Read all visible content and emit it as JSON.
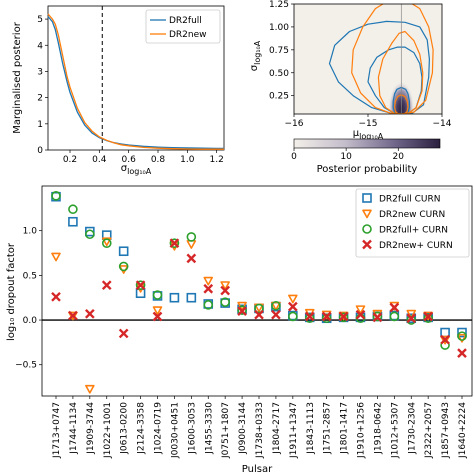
{
  "chart_data": [
    {
      "type": "line",
      "xlabel_base": "σ",
      "xlabel_sub": "log₁₀A",
      "ylabel": "Marginalised posterior",
      "xlim": [
        0.05,
        1.25
      ],
      "ylim": [
        0,
        5.5
      ],
      "xticks": [
        "0.2",
        "0.4",
        "0.6",
        "0.8",
        "1.0",
        "1.2"
      ],
      "yticks": [
        "0",
        "1",
        "2",
        "3",
        "4",
        "5"
      ],
      "vline_x": 0.42,
      "legend_position": "top-right",
      "series": [
        {
          "name": "DR2full",
          "color": "#1f77b4",
          "x": [
            0.05,
            0.08,
            0.1,
            0.12,
            0.15,
            0.18,
            0.2,
            0.25,
            0.3,
            0.35,
            0.4,
            0.45,
            0.5,
            0.55,
            0.6,
            0.7,
            0.8,
            0.9,
            1.0,
            1.1,
            1.2,
            1.25
          ],
          "y": [
            5.1,
            4.9,
            4.6,
            4.1,
            3.3,
            2.6,
            2.2,
            1.45,
            0.95,
            0.65,
            0.47,
            0.36,
            0.28,
            0.23,
            0.19,
            0.14,
            0.11,
            0.09,
            0.08,
            0.07,
            0.06,
            0.06
          ]
        },
        {
          "name": "DR2new",
          "color": "#ff7f0e",
          "x": [
            0.05,
            0.08,
            0.1,
            0.12,
            0.15,
            0.18,
            0.2,
            0.25,
            0.3,
            0.35,
            0.4,
            0.45,
            0.5,
            0.55,
            0.6,
            0.7,
            0.8,
            0.9,
            1.0,
            1.1,
            1.2,
            1.25
          ],
          "y": [
            5.2,
            5.0,
            4.8,
            4.4,
            3.6,
            2.8,
            2.4,
            1.6,
            1.05,
            0.72,
            0.5,
            0.37,
            0.27,
            0.2,
            0.16,
            0.1,
            0.07,
            0.05,
            0.04,
            0.03,
            0.03,
            0.03
          ]
        }
      ]
    },
    {
      "type": "heatmap",
      "xlabel_base": "μ",
      "xlabel_sub": "log₁₀A",
      "ylabel_base": "σ",
      "ylabel_sub": "log₁₀A",
      "xlim": [
        -16,
        -14
      ],
      "ylim": [
        0.05,
        1.25
      ],
      "xticks": [
        "−16",
        "−15",
        "−14"
      ],
      "yticks": [
        "0.25",
        "0.50",
        "0.75",
        "1.00",
        "1.25"
      ],
      "vline_x": -14.55,
      "colorbar_label": "Posterior probability",
      "colorbar_ticks": [
        "0",
        "10",
        "20"
      ],
      "colorbar_range": [
        0,
        28
      ],
      "peak": {
        "mu": -14.55,
        "sigma": 0.1,
        "value": 28
      },
      "contours": [
        {
          "series": "DR2full",
          "color": "#1f77b4",
          "mu": [
            -14.55,
            -14.49,
            -14.46,
            -14.44,
            -14.44,
            -14.46,
            -14.49,
            -14.55,
            -14.61,
            -14.64,
            -14.66,
            -14.66,
            -14.64,
            -14.61
          ],
          "sigma": [
            0.34,
            0.32,
            0.27,
            0.19,
            0.12,
            0.07,
            0.05,
            0.045,
            0.05,
            0.07,
            0.12,
            0.19,
            0.27,
            0.32
          ]
        },
        {
          "series": "DR2full",
          "color": "#1f77b4",
          "mu": [
            -14.5,
            -14.38,
            -14.3,
            -14.27,
            -14.28,
            -14.35,
            -14.45,
            -14.55,
            -14.65,
            -14.78,
            -14.9,
            -15.0,
            -14.97,
            -14.88,
            -14.72,
            -14.6
          ],
          "sigma": [
            0.78,
            0.72,
            0.6,
            0.45,
            0.3,
            0.12,
            0.06,
            0.05,
            0.06,
            0.12,
            0.25,
            0.4,
            0.55,
            0.67,
            0.75,
            0.78
          ]
        },
        {
          "series": "DR2full",
          "color": "#1f77b4",
          "mu": [
            -14.5,
            -14.3,
            -14.2,
            -14.17,
            -14.18,
            -14.25,
            -14.4,
            -14.55,
            -14.7,
            -14.95,
            -15.2,
            -15.4,
            -15.52,
            -15.45,
            -15.25,
            -15.0,
            -14.75
          ],
          "sigma": [
            1.05,
            1.0,
            0.86,
            0.65,
            0.45,
            0.15,
            0.06,
            0.05,
            0.06,
            0.12,
            0.25,
            0.4,
            0.6,
            0.8,
            0.95,
            1.03,
            1.06
          ]
        },
        {
          "series": "DR2new",
          "color": "#ff7f0e",
          "mu": [
            -14.55,
            -14.5,
            -14.47,
            -14.46,
            -14.47,
            -14.5,
            -14.55,
            -14.6,
            -14.63,
            -14.64,
            -14.63,
            -14.6
          ],
          "sigma": [
            0.26,
            0.24,
            0.19,
            0.13,
            0.08,
            0.055,
            0.05,
            0.055,
            0.08,
            0.13,
            0.19,
            0.24
          ]
        },
        {
          "series": "DR2new",
          "color": "#ff7f0e",
          "mu": [
            -14.5,
            -14.38,
            -14.3,
            -14.26,
            -14.27,
            -14.35,
            -14.45,
            -14.55,
            -14.65,
            -14.76,
            -14.84,
            -14.86,
            -14.8,
            -14.68,
            -14.58
          ],
          "sigma": [
            0.95,
            0.85,
            0.7,
            0.5,
            0.3,
            0.12,
            0.06,
            0.05,
            0.06,
            0.12,
            0.25,
            0.45,
            0.65,
            0.82,
            0.93
          ]
        },
        {
          "series": "DR2new",
          "color": "#ff7f0e",
          "mu": [
            -14.5,
            -14.3,
            -14.18,
            -14.12,
            -14.13,
            -14.22,
            -14.38,
            -14.55,
            -14.7,
            -14.9,
            -15.1,
            -15.22,
            -15.2,
            -15.07,
            -14.9,
            -14.7
          ],
          "sigma": [
            1.3,
            1.2,
            1.0,
            0.75,
            0.5,
            0.2,
            0.07,
            0.05,
            0.06,
            0.12,
            0.28,
            0.5,
            0.75,
            1.0,
            1.2,
            1.3
          ]
        }
      ]
    },
    {
      "type": "scatter",
      "ylabel": "log₁₀ dropout factor",
      "xlabel": "Pulsar",
      "ylim": [
        -0.85,
        1.5
      ],
      "yticks": [
        "−0.5",
        "0.0",
        "0.5",
        "1.0"
      ],
      "ytick_values": [
        -0.5,
        0,
        0.5,
        1.0
      ],
      "hline_y": 0,
      "legend_position": "top-right",
      "categories": [
        "J1713+0747",
        "J1744-1134",
        "J1909-3744",
        "J1022+1001",
        "J0613-0200",
        "J2124-3358",
        "J1024-0719",
        "J0030+0451",
        "J1600-3053",
        "J1455-3330",
        "J0751+1807",
        "J0900-3144",
        "J1738+0333",
        "J1804-2717",
        "J1911+1347",
        "J1843-1113",
        "J1751-2857",
        "J1801-1417",
        "J1910+1256",
        "J1918-0642",
        "J1012+5307",
        "J1730-2304",
        "J2322+2057",
        "J1857+0943",
        "J1640+2224"
      ],
      "series": [
        {
          "name": "DR2full CURN",
          "marker": "square",
          "color": "#1f77b4",
          "values": [
            1.38,
            1.1,
            0.99,
            0.95,
            0.77,
            0.3,
            0.27,
            0.25,
            0.25,
            0.18,
            0.19,
            0.12,
            0.13,
            0.15,
            0.05,
            0.03,
            0.02,
            0.03,
            0.03,
            0.04,
            0.05,
            0.02,
            0.03,
            -0.14,
            -0.14
          ]
        },
        {
          "name": "DR2new CURN",
          "marker": "triangle-down",
          "color": "#ff7f0e",
          "values": [
            0.71,
            0.05,
            -0.77,
            0.88,
            0.57,
            0.36,
            0.11,
            0.83,
            0.85,
            0.44,
            0.39,
            0.16,
            0.14,
            0.16,
            0.24,
            0.08,
            0.06,
            0.05,
            0.12,
            0.07,
            0.16,
            0.07,
            0.05,
            -0.22,
            -0.2
          ]
        },
        {
          "name": "DR2full+ CURN",
          "marker": "circle",
          "color": "#2ca02c",
          "values": [
            1.39,
            1.24,
            0.96,
            0.86,
            0.6,
            0.39,
            0.28,
            0.86,
            0.93,
            0.17,
            0.2,
            0.11,
            0.13,
            0.16,
            0.04,
            0.02,
            0.02,
            0.03,
            0.02,
            0.04,
            0.04,
            0.0,
            0.02,
            -0.28,
            -0.18
          ]
        },
        {
          "name": "DR2new+ CURN",
          "marker": "x",
          "color": "#d62728",
          "values": [
            0.26,
            0.05,
            0.07,
            0.39,
            -0.15,
            0.39,
            0.04,
            0.86,
            0.69,
            0.35,
            0.33,
            0.1,
            0.06,
            0.06,
            0.15,
            0.04,
            0.04,
            0.04,
            0.06,
            0.03,
            0.14,
            0.02,
            0.04,
            -0.22,
            -0.37
          ]
        }
      ]
    }
  ]
}
